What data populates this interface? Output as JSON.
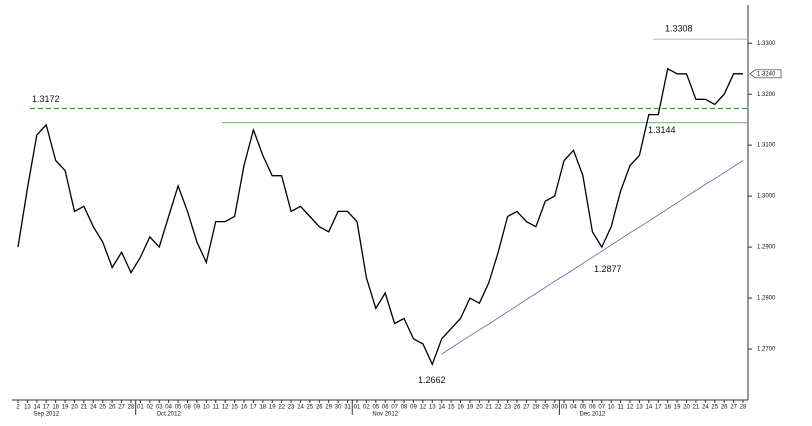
{
  "chart_data": {
    "type": "line",
    "categories": [
      "2",
      "13",
      "14",
      "17",
      "18",
      "19",
      "20",
      "21",
      "24",
      "25",
      "26",
      "27",
      "28",
      "01",
      "02",
      "03",
      "04",
      "05",
      "08",
      "09",
      "10",
      "11",
      "12",
      "15",
      "16",
      "17",
      "18",
      "19",
      "22",
      "23",
      "24",
      "25",
      "26",
      "29",
      "30",
      "31",
      "01",
      "02",
      "05",
      "06",
      "07",
      "08",
      "09",
      "12",
      "13",
      "14",
      "15",
      "16",
      "19",
      "20",
      "21",
      "22",
      "23",
      "26",
      "27",
      "28",
      "29",
      "30",
      "03",
      "04",
      "05",
      "06",
      "07",
      "10",
      "11",
      "12",
      "13",
      "14",
      "17",
      "18",
      "19",
      "20",
      "21",
      "24",
      "25",
      "26",
      "27",
      "28"
    ],
    "months": [
      "Sep 2012",
      "Oct 2012",
      "Nov 2012",
      "Dec 2012"
    ],
    "series": [
      {
        "color": "#000000",
        "values": [
          1.29,
          1.3015,
          1.312,
          1.314,
          1.307,
          1.305,
          1.297,
          1.298,
          1.294,
          1.291,
          1.286,
          1.289,
          1.285,
          1.288,
          1.292,
          1.29,
          1.296,
          1.302,
          1.297,
          1.291,
          1.287,
          1.295,
          1.295,
          1.296,
          1.306,
          1.313,
          1.308,
          1.304,
          1.304,
          1.297,
          1.298,
          1.296,
          1.294,
          1.293,
          1.297,
          1.297,
          1.295,
          1.284,
          1.278,
          1.281,
          1.275,
          1.276,
          1.272,
          1.271,
          1.267,
          1.272,
          1.274,
          1.276,
          1.28,
          1.279,
          1.283,
          1.289,
          1.296,
          1.297,
          1.295,
          1.294,
          1.299,
          1.3,
          1.307,
          1.309,
          1.304,
          1.293,
          1.29,
          1.294,
          1.301,
          1.306,
          1.308,
          1.316,
          1.316,
          1.325,
          1.324,
          1.324,
          1.319,
          1.319,
          1.318,
          1.32,
          1.324,
          1.324
        ]
      },
      {
        "color": "#5a5fb0",
        "values": [
          null,
          null,
          null,
          null,
          null,
          null,
          null,
          null,
          null,
          null,
          null,
          null,
          null,
          null,
          null,
          null,
          null,
          null,
          null,
          null,
          null,
          null,
          null,
          null,
          null,
          null,
          null,
          null,
          null,
          null,
          null,
          null,
          null,
          null,
          null,
          null,
          null,
          null,
          null,
          null,
          null,
          null,
          null,
          null,
          null,
          1.269,
          1.2702,
          1.2714,
          1.2726,
          1.2738,
          1.2749,
          1.2761,
          1.2773,
          1.2785,
          1.2797,
          1.2809,
          1.2821,
          1.2833,
          1.2844,
          1.2856,
          1.2868,
          1.288,
          1.2892,
          1.2904,
          1.2916,
          1.2928,
          1.2939,
          1.2951,
          1.2963,
          1.2975,
          1.2987,
          1.2999,
          1.3011,
          1.3023,
          1.3034,
          1.3046,
          1.3058,
          1.307
        ]
      }
    ],
    "annotations": [
      {
        "value": 1.3172,
        "line": "dashed",
        "color": "#3a9a3a"
      },
      {
        "value": 1.3308,
        "line": "solid",
        "color": "#b89a7a"
      },
      {
        "value": 1.3144,
        "line": "solid",
        "color": "#3a9a3a"
      },
      {
        "value": 1.2877
      },
      {
        "value": 1.2662
      }
    ],
    "last": {
      "value": 1.324,
      "label": "1.3240"
    },
    "ylim": [
      1.26,
      1.3375
    ],
    "yticks": [
      {
        "value": 1.27,
        "label": "1.2700"
      },
      {
        "value": 1.28,
        "label": "1.2800"
      },
      {
        "value": 1.29,
        "label": "1.2900"
      },
      {
        "value": 1.3,
        "label": "1.3000"
      },
      {
        "value": 1.31,
        "label": "1.3100"
      },
      {
        "value": 1.32,
        "label": "1.3200"
      },
      {
        "value": 1.33,
        "label": "1.3300"
      }
    ]
  }
}
